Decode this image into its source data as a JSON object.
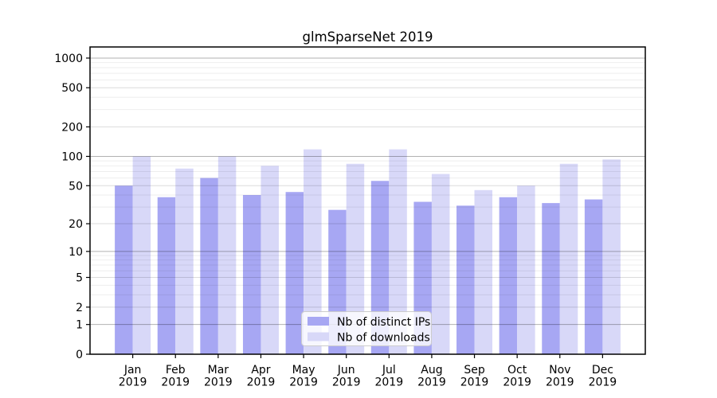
{
  "chart_data": {
    "type": "bar",
    "title": "glmSparseNet 2019",
    "categories": [
      "Jan",
      "Feb",
      "Mar",
      "Apr",
      "May",
      "Jun",
      "Jul",
      "Aug",
      "Sep",
      "Oct",
      "Nov",
      "Dec"
    ],
    "x_tick_line2": "2019",
    "series": [
      {
        "name": "Nb of distinct IPs",
        "color": "#a7a7f3",
        "values": [
          50,
          38,
          60,
          40,
          43,
          28,
          56,
          34,
          31,
          38,
          33,
          36
        ]
      },
      {
        "name": "Nb of downloads",
        "color": "#d8d8f8",
        "values": [
          100,
          75,
          100,
          80,
          118,
          84,
          118,
          66,
          45,
          50,
          84,
          93
        ]
      }
    ],
    "y_axis": {
      "scale": "log1p",
      "ticks": [
        0,
        1,
        2,
        5,
        10,
        20,
        50,
        100,
        200,
        500,
        1000
      ],
      "ylim": [
        0,
        1296
      ]
    },
    "legend": {
      "position": "bottom-center"
    },
    "grid": {
      "shown": true,
      "which": "major-and-minor"
    }
  }
}
